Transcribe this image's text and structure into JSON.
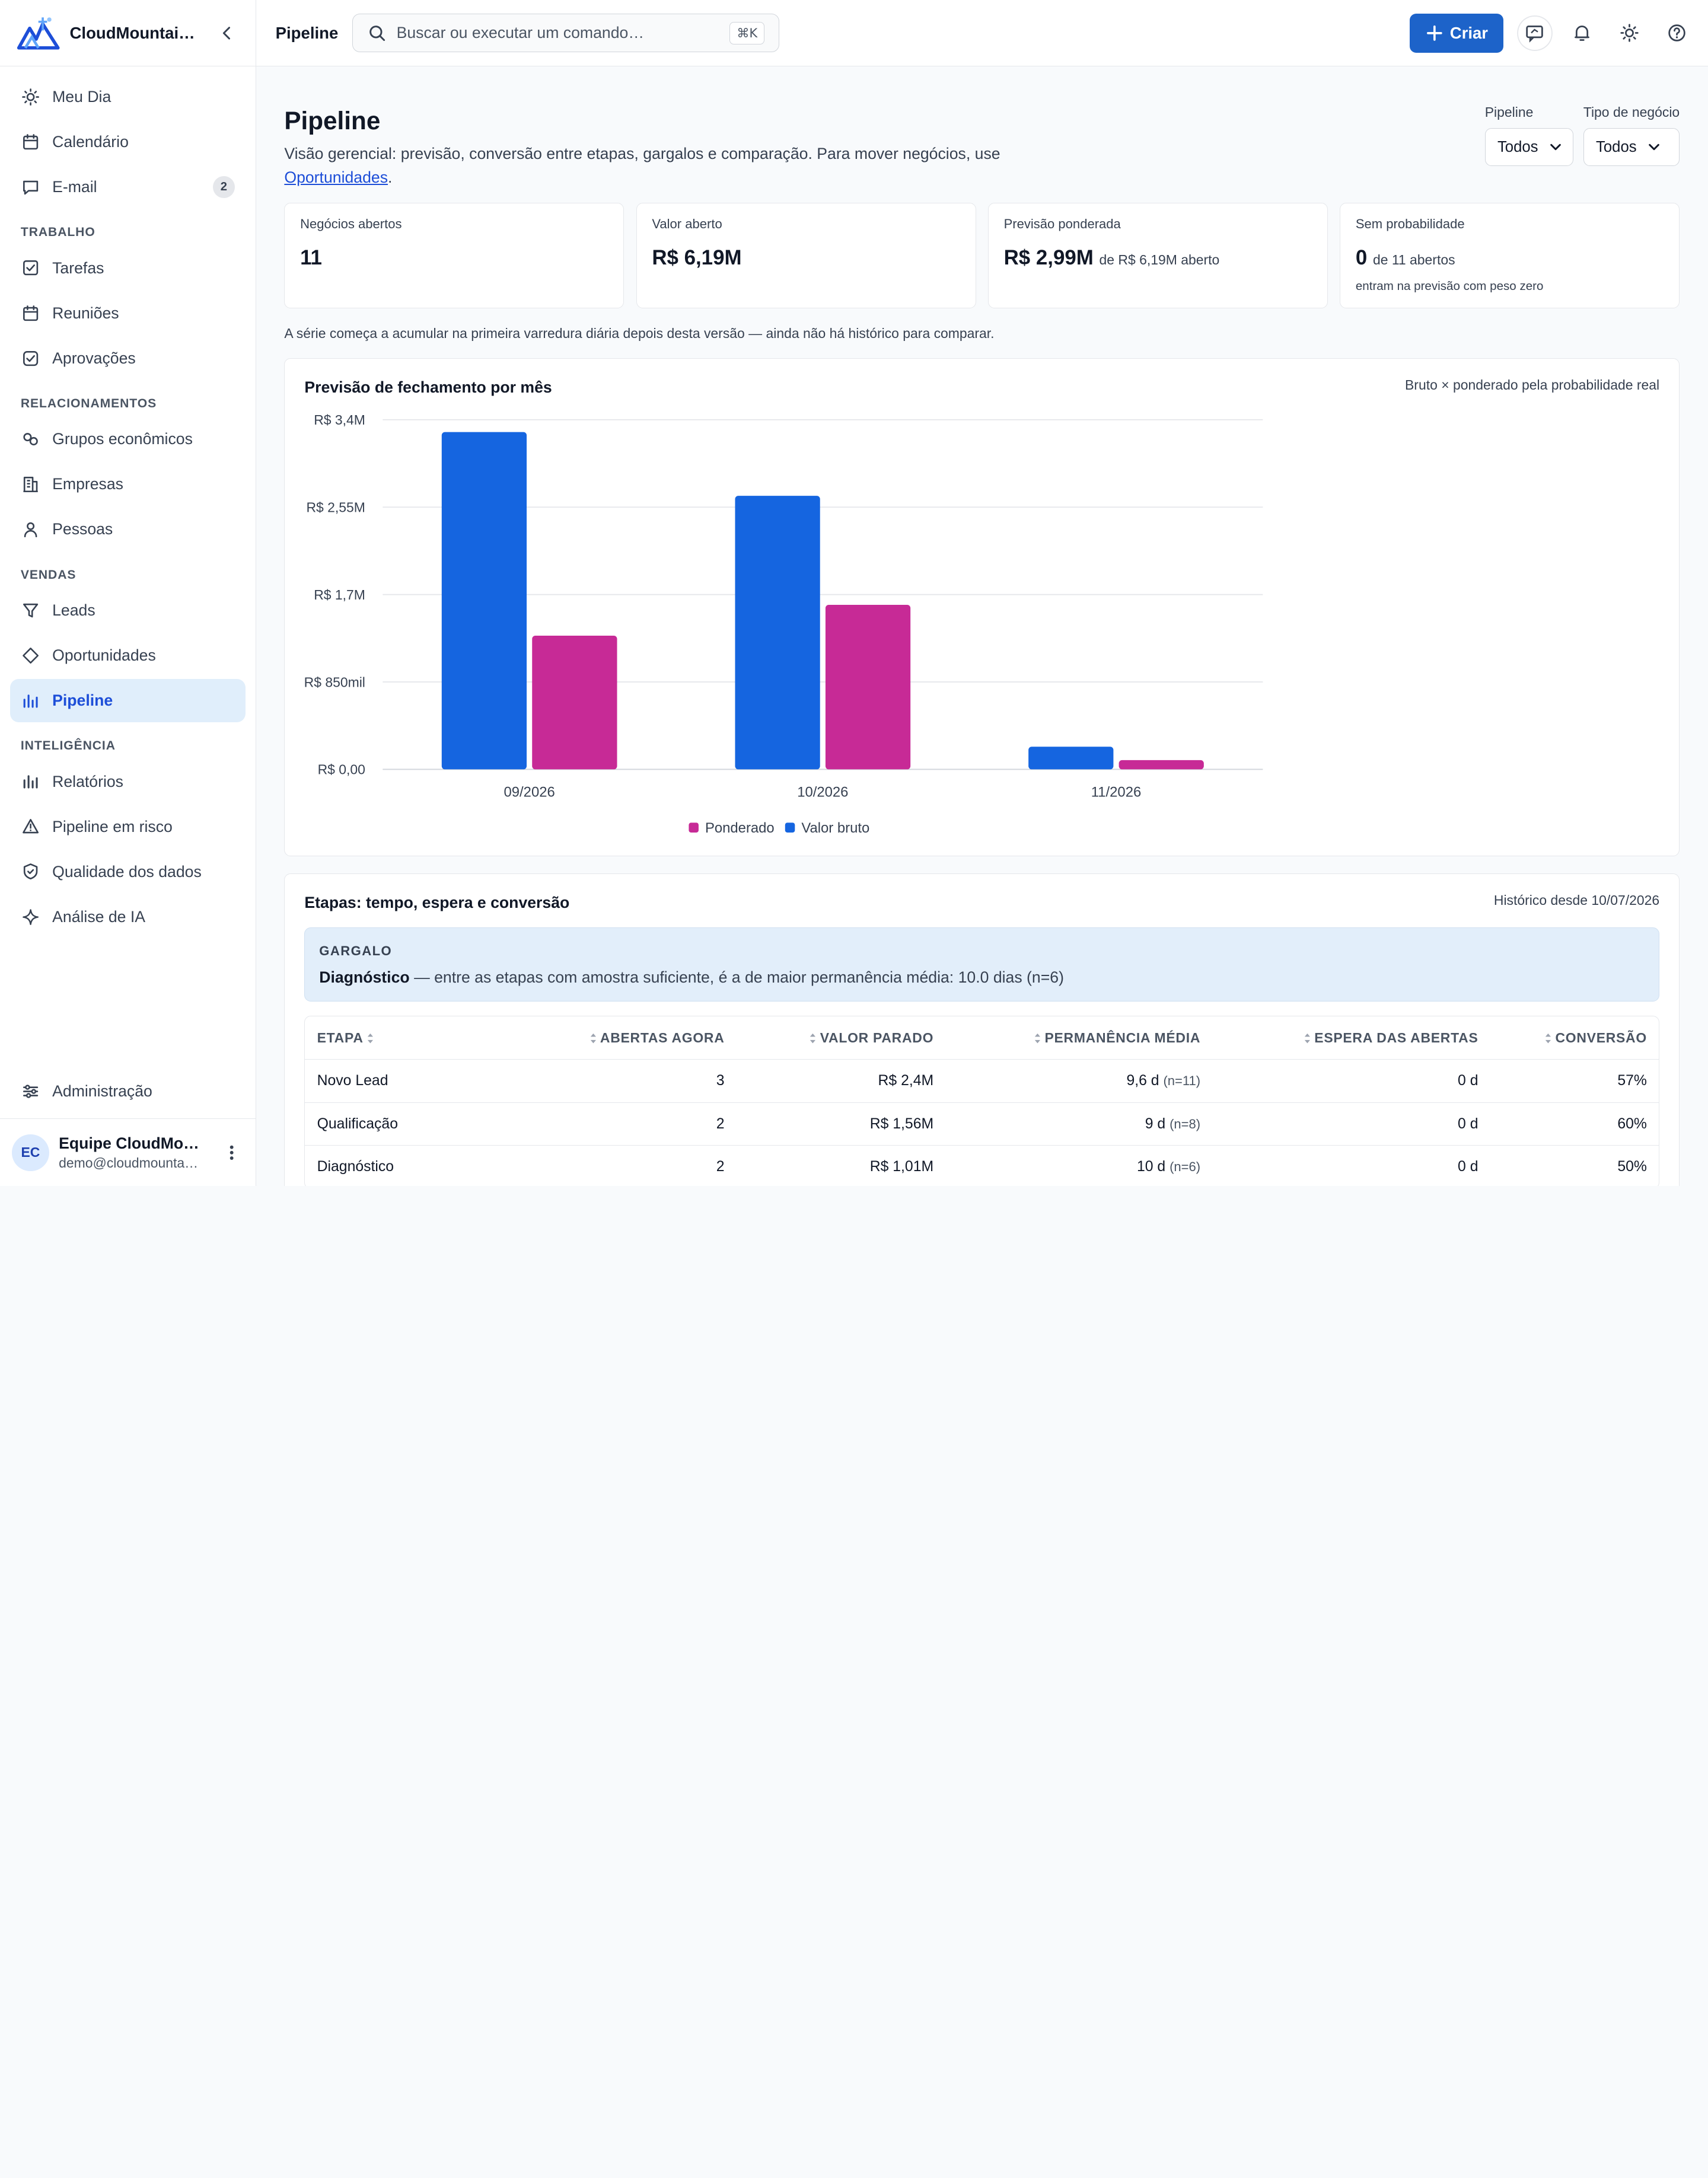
{
  "app": {
    "brand": "CloudMountai…"
  },
  "sidebar": {
    "top": [
      {
        "label": "Meu Dia",
        "icon": "sun-icon"
      },
      {
        "label": "Calendário",
        "icon": "calendar-icon"
      },
      {
        "label": "E-mail",
        "icon": "message-icon",
        "badge": "2"
      }
    ],
    "sections": [
      {
        "title": "TRABALHO",
        "items": [
          {
            "label": "Tarefas",
            "icon": "checkbox-icon"
          },
          {
            "label": "Reuniões",
            "icon": "calendar-icon"
          },
          {
            "label": "Aprovações",
            "icon": "check-square-icon"
          }
        ]
      },
      {
        "title": "RELACIONAMENTOS",
        "items": [
          {
            "label": "Grupos econômicos",
            "icon": "link-icon"
          },
          {
            "label": "Empresas",
            "icon": "building-icon"
          },
          {
            "label": "Pessoas",
            "icon": "person-icon"
          }
        ]
      },
      {
        "title": "VENDAS",
        "items": [
          {
            "label": "Leads",
            "icon": "funnel-icon"
          },
          {
            "label": "Oportunidades",
            "icon": "diamond-icon"
          },
          {
            "label": "Pipeline",
            "icon": "bar-chart-icon",
            "active": true
          }
        ]
      },
      {
        "title": "INTELIGÊNCIA",
        "items": [
          {
            "label": "Relatórios",
            "icon": "bar-chart-icon"
          },
          {
            "label": "Pipeline em risco",
            "icon": "warning-icon"
          },
          {
            "label": "Qualidade dos dados",
            "icon": "shield-check-icon"
          },
          {
            "label": "Análise de IA",
            "icon": "sparkle-icon"
          }
        ]
      }
    ],
    "admin": {
      "label": "Administração",
      "icon": "sliders-icon"
    },
    "user": {
      "initials": "EC",
      "name": "Equipe CloudMo…",
      "email": "demo@cloudmounta…"
    }
  },
  "topbar": {
    "title": "Pipeline",
    "search_placeholder": "Buscar ou executar um comando…",
    "shortcut": "⌘K",
    "create_label": "Criar"
  },
  "page": {
    "title": "Pipeline",
    "description": "Visão gerencial: previsão, conversão entre etapas, gargalos e comparação. Para mover negócios, use",
    "description_link": "Oportunidades",
    "description_end": ".",
    "filters": [
      {
        "label": "Pipeline",
        "value": "Todos"
      },
      {
        "label": "Tipo de negócio",
        "value": "Todos"
      }
    ]
  },
  "kpis": [
    {
      "label": "Negócios abertos",
      "value": "11",
      "suffix": "",
      "note": ""
    },
    {
      "label": "Valor aberto",
      "value": "R$ 6,19M",
      "suffix": "",
      "note": ""
    },
    {
      "label": "Previsão ponderada",
      "value": "R$ 2,99M",
      "suffix": "de R$ 6,19M aberto",
      "note": ""
    },
    {
      "label": "Sem probabilidade",
      "value": "0",
      "suffix": "de 11 abertos",
      "note": "entram na previsão com peso zero"
    }
  ],
  "history_note": "A série começa a acumular na primeira varredura diária depois desta versão — ainda não há histórico para comparar.",
  "forecast": {
    "title": "Previsão de fechamento por mês",
    "subtitle": "Bruto × ponderado pela probabilidade real"
  },
  "chart_data": {
    "type": "bar",
    "categories": [
      "09/2026",
      "10/2026",
      "11/2026"
    ],
    "series": [
      {
        "name": "Valor bruto",
        "color": "#1565e0",
        "values": [
          3.28,
          2.66,
          0.22
        ]
      },
      {
        "name": "Ponderado",
        "color": "#c72a96",
        "values": [
          1.3,
          1.6,
          0.09
        ]
      }
    ],
    "unit": "R$ milhões",
    "ylim": [
      0,
      3.4
    ],
    "yticks": [
      "R$ 0,00",
      "R$ 850mil",
      "R$ 1,7M",
      "R$ 2,55M",
      "R$ 3,4M"
    ],
    "ytick_values": [
      0,
      0.85,
      1.7,
      2.55,
      3.4
    ],
    "legend": [
      "Ponderado",
      "Valor bruto"
    ],
    "grid": true,
    "legend_position": "bottom"
  },
  "stages": {
    "title": "Etapas: tempo, espera e conversão",
    "subtitle": "Histórico desde 10/07/2026",
    "bottleneck_label": "GARGALO",
    "bottleneck_stage": "Diagnóstico",
    "bottleneck_text": "— entre as etapas com amostra suficiente, é a de maior permanência média: 10.0 dias (n=6)",
    "columns": [
      "ETAPA",
      "ABERTAS AGORA",
      "VALOR PARADO",
      "PERMANÊNCIA MÉDIA",
      "ESPERA DAS ABERTAS",
      "CONVERSÃO"
    ],
    "rows": [
      {
        "stage": "Novo Lead",
        "open": "3",
        "value": "R$ 2,4M",
        "stay": "9,6 d",
        "n": "(n=11)",
        "wait": "0 d",
        "conv": "57%"
      },
      {
        "stage": "Qualificação",
        "open": "2",
        "value": "R$ 1,56M",
        "stay": "9 d",
        "n": "(n=8)",
        "wait": "0 d",
        "conv": "60%"
      },
      {
        "stage": "Diagnóstico",
        "open": "2",
        "value": "R$ 1,01M",
        "stay": "10 d",
        "n": "(n=6)",
        "wait": "0 d",
        "conv": "50%"
      }
    ]
  }
}
